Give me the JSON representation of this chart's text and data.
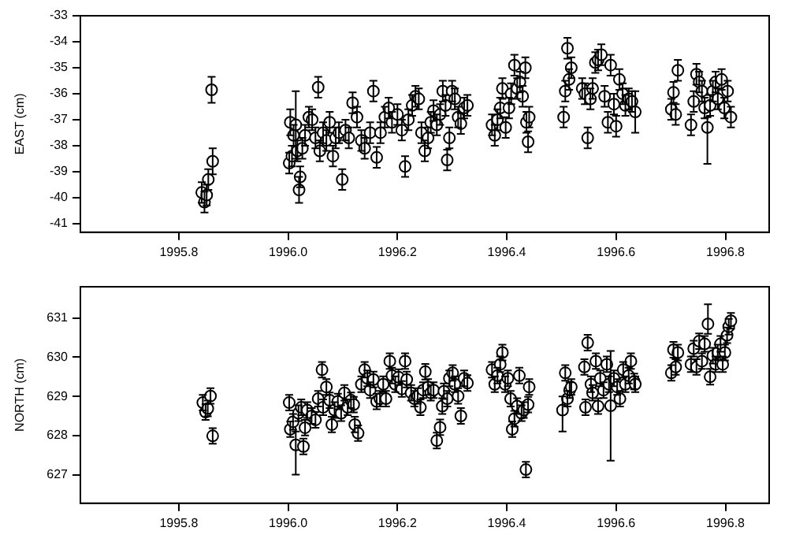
{
  "chart_data": [
    {
      "type": "scatter",
      "ylabel": "EAST (cm)",
      "color": "#000000",
      "marker": "circle",
      "grid": false,
      "xlim": [
        1995.62,
        1996.88
      ],
      "xticks": [
        {
          "value": 1995.8,
          "label": "1995.8"
        },
        {
          "value": 1996.0,
          "label": "1996.0"
        },
        {
          "value": 1996.2,
          "label": "1996.2"
        },
        {
          "value": 1996.4,
          "label": "1996.4"
        },
        {
          "value": 1996.6,
          "label": "1996.6"
        },
        {
          "value": 1996.8,
          "label": "1996.8"
        }
      ],
      "ylim": [
        -41.33,
        -33
      ],
      "yticks": [
        -41,
        -40,
        -39,
        -38,
        -37,
        -36,
        -35,
        -34,
        -33
      ],
      "x": [
        1995.842,
        1995.847,
        1995.851,
        1995.854,
        1995.86,
        1995.862,
        1996.002,
        1996.004,
        1996.007,
        1996.01,
        1996.014,
        1996.017,
        1996.02,
        1996.022,
        1996.026,
        1996.031,
        1996.038,
        1996.044,
        1996.05,
        1996.055,
        1996.058,
        1996.064,
        1996.07,
        1996.076,
        1996.082,
        1996.087,
        1996.093,
        1996.099,
        1996.105,
        1996.111,
        1996.118,
        1996.126,
        1996.134,
        1996.14,
        1996.15,
        1996.156,
        1996.162,
        1996.169,
        1996.177,
        1996.184,
        1996.19,
        1996.2,
        1996.208,
        1996.214,
        1996.22,
        1996.227,
        1996.233,
        1996.239,
        1996.244,
        1996.25,
        1996.256,
        1996.261,
        1996.266,
        1996.272,
        1996.278,
        1996.283,
        1996.288,
        1996.291,
        1996.295,
        1996.3,
        1996.305,
        1996.311,
        1996.316,
        1996.322,
        1996.328,
        1996.373,
        1996.378,
        1996.383,
        1996.388,
        1996.392,
        1996.398,
        1996.404,
        1996.408,
        1996.414,
        1996.419,
        1996.424,
        1996.429,
        1996.434,
        1996.436,
        1996.439,
        1996.441,
        1996.504,
        1996.507,
        1996.511,
        1996.514,
        1996.518,
        1996.538,
        1996.543,
        1996.548,
        1996.553,
        1996.557,
        1996.562,
        1996.567,
        1996.573,
        1996.579,
        1996.585,
        1996.59,
        1996.596,
        1996.6,
        1996.606,
        1996.612,
        1996.617,
        1996.623,
        1996.629,
        1996.635,
        1996.701,
        1996.705,
        1996.709,
        1996.713,
        1996.737,
        1996.742,
        1996.747,
        1996.752,
        1996.757,
        1996.762,
        1996.767,
        1996.772,
        1996.777,
        1996.782,
        1996.786,
        1996.793,
        1996.798,
        1996.804,
        1996.81
      ],
      "values": [
        -39.8,
        -40.17,
        -39.9,
        -39.3,
        -35.85,
        -38.6,
        -38.67,
        -37.1,
        -38.4,
        -37.6,
        -37.2,
        -38.2,
        -39.7,
        -39.2,
        -38.1,
        -37.6,
        -36.9,
        -37.0,
        -37.7,
        -35.75,
        -38.2,
        -37.5,
        -37.8,
        -37.1,
        -38.4,
        -37.7,
        -37.5,
        -39.3,
        -37.4,
        -37.7,
        -36.35,
        -36.9,
        -37.8,
        -38.1,
        -37.5,
        -35.9,
        -38.45,
        -37.5,
        -36.9,
        -36.55,
        -37.1,
        -36.8,
        -37.4,
        -38.8,
        -37.0,
        -36.45,
        -36.1,
        -36.2,
        -37.5,
        -38.2,
        -37.7,
        -37.1,
        -36.65,
        -37.2,
        -36.8,
        -35.9,
        -36.45,
        -38.55,
        -37.7,
        -35.9,
        -36.2,
        -36.9,
        -37.15,
        -36.55,
        -36.45,
        -37.2,
        -37.6,
        -37.0,
        -36.55,
        -35.8,
        -37.3,
        -36.55,
        -36.0,
        -34.9,
        -35.8,
        -35.55,
        -36.1,
        -35.0,
        -37.1,
        -37.85,
        -36.9,
        -36.9,
        -35.9,
        -34.25,
        -35.45,
        -35.0,
        -35.8,
        -36.0,
        -37.7,
        -36.2,
        -35.8,
        -34.8,
        -34.7,
        -34.5,
        -36.1,
        -37.1,
        -34.9,
        -36.4,
        -37.25,
        -35.45,
        -36.0,
        -36.45,
        -36.2,
        -36.3,
        -36.7,
        -36.6,
        -35.95,
        -36.8,
        -35.1,
        -37.2,
        -36.3,
        -35.25,
        -35.55,
        -35.9,
        -36.55,
        -37.3,
        -36.45,
        -35.9,
        -35.55,
        -36.2,
        -35.45,
        -36.55,
        -35.9,
        -36.9
      ],
      "errors": [
        0.4,
        0.4,
        0.4,
        0.4,
        0.5,
        0.5,
        0.4,
        0.5,
        0.4,
        0.4,
        1.3,
        0.4,
        0.5,
        0.4,
        0.4,
        0.4,
        0.4,
        0.4,
        0.4,
        0.4,
        0.4,
        0.4,
        0.4,
        0.4,
        0.4,
        0.4,
        0.4,
        0.4,
        0.4,
        0.4,
        0.4,
        0.4,
        0.4,
        0.4,
        0.4,
        0.4,
        0.4,
        0.4,
        0.4,
        0.4,
        0.4,
        0.4,
        0.4,
        0.4,
        0.4,
        0.4,
        0.4,
        0.4,
        0.4,
        0.4,
        0.4,
        0.4,
        0.4,
        0.4,
        0.4,
        0.4,
        0.4,
        0.4,
        0.4,
        0.4,
        0.4,
        0.4,
        0.4,
        0.4,
        0.4,
        0.4,
        0.4,
        0.4,
        0.4,
        0.4,
        0.4,
        0.4,
        0.4,
        0.4,
        0.4,
        0.4,
        0.4,
        0.4,
        0.4,
        0.4,
        0.4,
        0.4,
        0.4,
        0.4,
        0.4,
        0.4,
        0.4,
        0.4,
        0.4,
        0.4,
        0.4,
        0.4,
        0.4,
        0.4,
        0.4,
        0.4,
        0.4,
        0.4,
        0.4,
        0.4,
        0.4,
        0.4,
        0.4,
        0.4,
        0.8,
        0.4,
        0.4,
        0.4,
        0.4,
        0.4,
        0.4,
        0.4,
        0.4,
        0.4,
        0.4,
        [
          -38.7,
          -36.9
        ],
        0.4,
        0.4,
        0.4,
        0.4,
        0.4,
        0.4,
        0.4,
        0.4
      ]
    },
    {
      "type": "scatter",
      "ylabel": "NORTH (cm)",
      "color": "#000000",
      "marker": "circle",
      "grid": false,
      "xlim": [
        1995.62,
        1996.88
      ],
      "xticks": [
        {
          "value": 1995.8,
          "label": "1995.8"
        },
        {
          "value": 1996.0,
          "label": "1996.0"
        },
        {
          "value": 1996.2,
          "label": "1996.2"
        },
        {
          "value": 1996.4,
          "label": "1996.4"
        },
        {
          "value": 1996.6,
          "label": "1996.6"
        },
        {
          "value": 1996.8,
          "label": "1996.8"
        }
      ],
      "ylim": [
        626.27,
        631.8
      ],
      "yticks": [
        627,
        628,
        629,
        630,
        631
      ],
      "x": [
        1995.844,
        1995.849,
        1995.853,
        1995.858,
        1995.862,
        1996.002,
        1996.004,
        1996.009,
        1996.014,
        1996.019,
        1996.024,
        1996.028,
        1996.031,
        1996.035,
        1996.043,
        1996.05,
        1996.055,
        1996.062,
        1996.064,
        1996.07,
        1996.076,
        1996.08,
        1996.085,
        1996.091,
        1996.097,
        1996.103,
        1996.109,
        1996.115,
        1996.12,
        1996.122,
        1996.128,
        1996.134,
        1996.14,
        1996.145,
        1996.15,
        1996.156,
        1996.162,
        1996.168,
        1996.174,
        1996.179,
        1996.186,
        1996.19,
        1996.196,
        1996.202,
        1996.208,
        1996.214,
        1996.217,
        1996.225,
        1996.231,
        1996.237,
        1996.242,
        1996.247,
        1996.251,
        1996.256,
        1996.261,
        1996.266,
        1996.272,
        1996.278,
        1996.282,
        1996.285,
        1996.291,
        1996.295,
        1996.301,
        1996.305,
        1996.311,
        1996.316,
        1996.322,
        1996.328,
        1996.373,
        1996.378,
        1996.383,
        1996.388,
        1996.392,
        1996.397,
        1996.402,
        1996.407,
        1996.41,
        1996.414,
        1996.419,
        1996.423,
        1996.427,
        1996.431,
        1996.435,
        1996.439,
        1996.441,
        1996.502,
        1996.507,
        1996.511,
        1996.515,
        1996.518,
        1996.542,
        1996.544,
        1996.548,
        1996.554,
        1996.557,
        1996.563,
        1996.567,
        1996.571,
        1996.577,
        1996.583,
        1996.587,
        1996.59,
        1996.596,
        1996.602,
        1996.607,
        1996.613,
        1996.617,
        1996.623,
        1996.627,
        1996.633,
        1996.635,
        1996.701,
        1996.705,
        1996.709,
        1996.713,
        1996.737,
        1996.742,
        1996.747,
        1996.752,
        1996.757,
        1996.762,
        1996.768,
        1996.772,
        1996.777,
        1996.782,
        1996.786,
        1996.791,
        1996.795,
        1996.799,
        1996.803,
        1996.806,
        1996.81
      ],
      "values": [
        628.84,
        628.6,
        628.69,
        629.01,
        627.99,
        628.84,
        628.16,
        628.35,
        627.76,
        628.57,
        628.72,
        627.72,
        628.2,
        628.65,
        628.5,
        628.4,
        628.94,
        629.68,
        628.72,
        629.24,
        628.9,
        628.28,
        628.65,
        628.87,
        628.57,
        629.09,
        628.72,
        628.9,
        628.79,
        628.28,
        628.06,
        629.31,
        629.68,
        629.46,
        629.16,
        629.43,
        628.87,
        628.94,
        629.31,
        628.94,
        629.9,
        629.53,
        629.31,
        629.49,
        629.19,
        629.9,
        629.43,
        629.09,
        628.94,
        629.01,
        628.72,
        629.16,
        629.63,
        629.24,
        629.09,
        629.16,
        627.87,
        628.21,
        628.75,
        629.13,
        628.94,
        629.46,
        629.6,
        629.31,
        629.01,
        628.5,
        629.46,
        629.34,
        629.68,
        629.31,
        629.53,
        629.82,
        630.12,
        629.31,
        629.46,
        628.94,
        628.16,
        628.43,
        628.75,
        629.53,
        628.57,
        628.65,
        627.13,
        628.79,
        629.24,
        628.65,
        629.6,
        628.94,
        629.16,
        629.24,
        629.75,
        628.72,
        630.37,
        629.31,
        629.09,
        629.9,
        628.75,
        629.46,
        629.16,
        629.82,
        629.31,
        628.76,
        629.46,
        629.24,
        628.94,
        629.68,
        629.31,
        629.53,
        629.9,
        629.38,
        629.31,
        629.6,
        630.19,
        629.75,
        630.12,
        629.82,
        630.22,
        629.75,
        630.41,
        629.9,
        630.34,
        630.85,
        629.5,
        630.04,
        629.82,
        630.12,
        630.34,
        629.82,
        630.12,
        630.56,
        630.78,
        630.93
      ],
      "errors": [
        0.2,
        0.2,
        0.2,
        0.2,
        0.2,
        0.2,
        0.2,
        0.2,
        [
          627.0,
          628.1
        ],
        0.2,
        0.2,
        0.2,
        0.2,
        0.2,
        0.2,
        0.2,
        0.2,
        0.2,
        0.2,
        0.2,
        0.2,
        0.2,
        0.2,
        0.2,
        0.2,
        0.2,
        0.2,
        0.2,
        0.2,
        0.2,
        0.2,
        0.2,
        0.2,
        0.2,
        0.2,
        0.2,
        0.2,
        0.2,
        0.2,
        0.2,
        0.2,
        0.2,
        0.2,
        0.2,
        0.2,
        0.2,
        0.2,
        0.2,
        0.2,
        0.2,
        0.2,
        0.2,
        0.2,
        0.2,
        0.2,
        0.2,
        0.2,
        0.2,
        0.2,
        0.2,
        0.2,
        0.2,
        0.2,
        0.2,
        0.2,
        0.2,
        0.2,
        0.2,
        0.2,
        0.2,
        0.2,
        0.2,
        0.2,
        0.2,
        0.2,
        0.2,
        0.2,
        0.2,
        0.2,
        0.2,
        0.2,
        0.2,
        0.2,
        0.2,
        0.2,
        [
          628.1,
          629.0
        ],
        0.2,
        0.2,
        0.2,
        0.2,
        0.2,
        0.2,
        0.2,
        0.2,
        0.2,
        0.2,
        0.2,
        0.2,
        0.2,
        0.2,
        0.2,
        1.4,
        0.2,
        0.2,
        0.2,
        0.2,
        0.2,
        0.2,
        0.2,
        0.2,
        0.2,
        0.2,
        0.2,
        0.2,
        0.2,
        0.2,
        0.2,
        0.2,
        0.2,
        0.2,
        0.2,
        [
          630.6,
          631.35
        ],
        0.2,
        0.2,
        0.2,
        0.2,
        0.2,
        0.2,
        0.2,
        0.2,
        0.2,
        0.2
      ]
    }
  ]
}
